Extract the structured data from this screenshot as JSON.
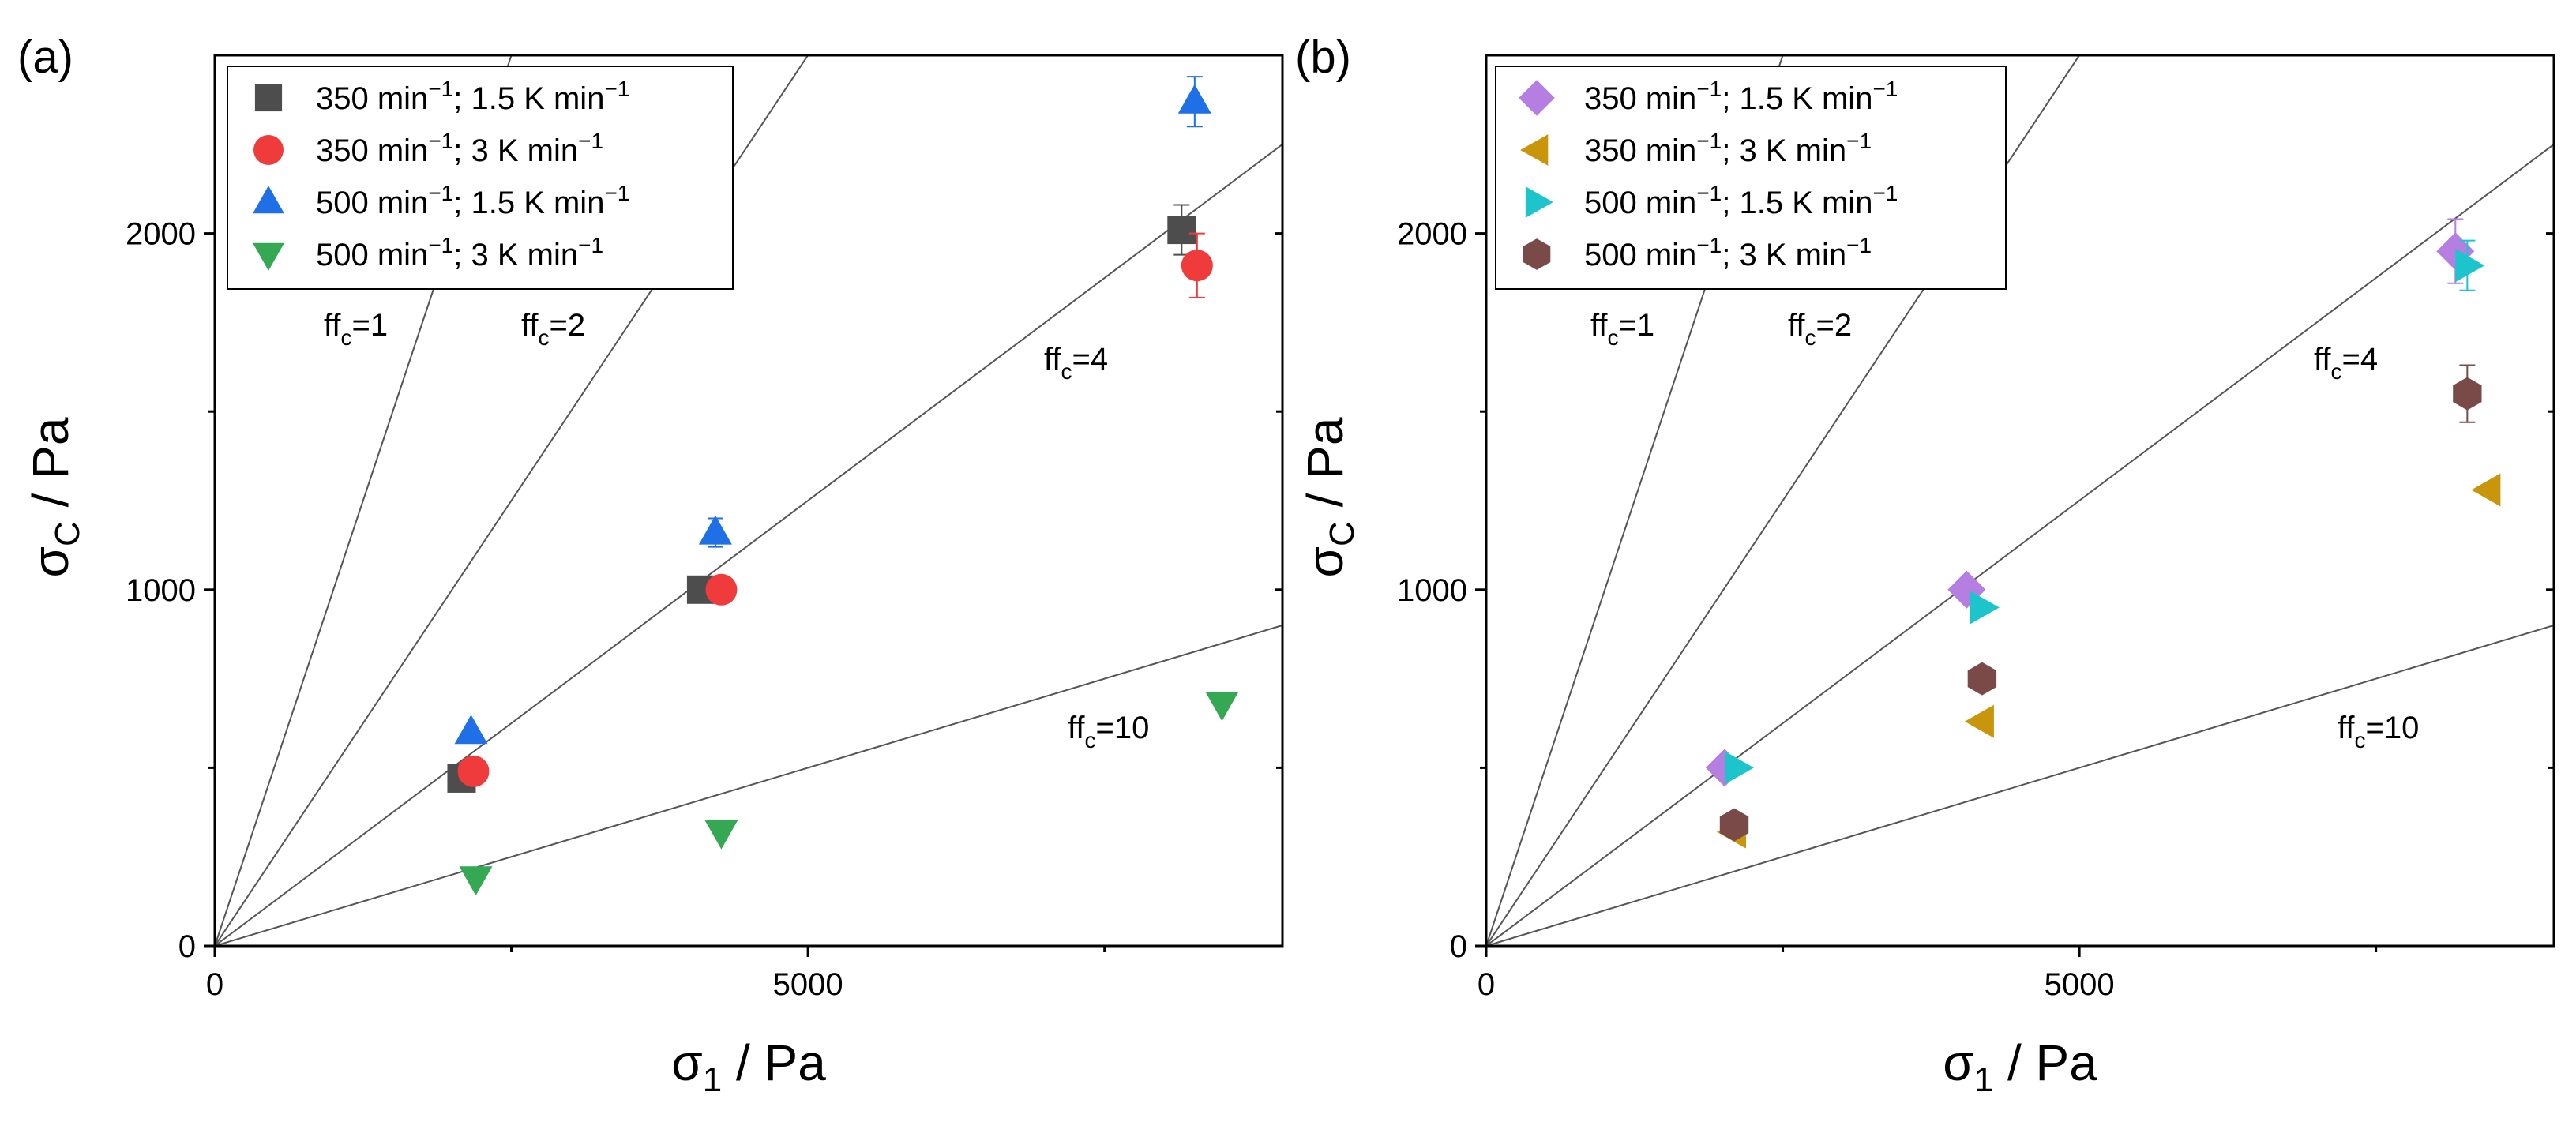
{
  "chart_data": [
    {
      "type": "scatter",
      "panel_label": "(a)",
      "xlabel": {
        "main": "σ",
        "sub": "1",
        "rest": " / Pa"
      },
      "ylabel": {
        "main": "σ",
        "sub": "C",
        "rest": " / Pa"
      },
      "xlim": [
        0,
        9000
      ],
      "ylim": [
        0,
        2500
      ],
      "x_ticks": [
        {
          "value": 0,
          "label": "0"
        },
        {
          "value": 5000,
          "label": "5000"
        }
      ],
      "y_ticks": [
        {
          "value": 0,
          "label": "0"
        },
        {
          "value": 1000,
          "label": "1000"
        },
        {
          "value": 2000,
          "label": "2000"
        }
      ],
      "x_minor_ticks": [
        2500,
        7500
      ],
      "y_minor_ticks": [
        500,
        1500
      ],
      "ff_lines": [
        {
          "ffc": 1,
          "label_main": "ff",
          "label_sub": "c",
          "label_rest": "=1"
        },
        {
          "ffc": 2,
          "label_main": "ff",
          "label_sub": "c",
          "label_rest": "=2"
        },
        {
          "ffc": 4,
          "label_main": "ff",
          "label_sub": "c",
          "label_rest": "=4"
        },
        {
          "ffc": 10,
          "label_main": "ff",
          "label_sub": "c",
          "label_rest": "=10"
        }
      ],
      "series": [
        {
          "name": "350 min−1; 1.5 K min−1",
          "legend": {
            "p1": "350 min",
            "s1": "−1",
            "p2": "; 1.5 K min",
            "s2": "−1"
          },
          "marker": "square",
          "color": "#4d4d4d",
          "points": [
            {
              "x": 2080,
              "y": 470,
              "err": 0
            },
            {
              "x": 4100,
              "y": 1000,
              "err": 0
            },
            {
              "x": 8150,
              "y": 2010,
              "err": 70
            }
          ]
        },
        {
          "name": "350 min−1; 3 K min−1",
          "legend": {
            "p1": "350 min",
            "s1": "−1",
            "p2": "; 3 K min",
            "s2": "−1"
          },
          "marker": "circle",
          "color": "#ef3b3b",
          "points": [
            {
              "x": 2180,
              "y": 490,
              "err": 0
            },
            {
              "x": 4270,
              "y": 1000,
              "err": 0
            },
            {
              "x": 8280,
              "y": 1910,
              "err": 90
            }
          ]
        },
        {
          "name": "500 min−1; 1.5 K min−1",
          "legend": {
            "p1": "500 min",
            "s1": "−1",
            "p2": "; 1.5 K min",
            "s2": "−1"
          },
          "marker": "triangle-up",
          "color": "#1f6fe6",
          "points": [
            {
              "x": 2160,
              "y": 600,
              "err": 0
            },
            {
              "x": 4220,
              "y": 1160,
              "err": 40
            },
            {
              "x": 8260,
              "y": 2370,
              "err": 70
            }
          ]
        },
        {
          "name": "500 min−1; 3 K min−1",
          "legend": {
            "p1": "500 min",
            "s1": "−1",
            "p2": "; 3 K min",
            "s2": "−1"
          },
          "marker": "triangle-down",
          "color": "#34a853",
          "points": [
            {
              "x": 2200,
              "y": 190,
              "err": 0
            },
            {
              "x": 4270,
              "y": 320,
              "err": 0
            },
            {
              "x": 8490,
              "y": 680,
              "err": 0
            }
          ]
        }
      ]
    },
    {
      "type": "scatter",
      "panel_label": "(b)",
      "xlabel": {
        "main": "σ",
        "sub": "1",
        "rest": " / Pa"
      },
      "ylabel": {
        "main": "σ",
        "sub": "C",
        "rest": " / Pa"
      },
      "xlim": [
        0,
        9000
      ],
      "ylim": [
        0,
        2500
      ],
      "x_ticks": [
        {
          "value": 0,
          "label": "0"
        },
        {
          "value": 5000,
          "label": "5000"
        }
      ],
      "y_ticks": [
        {
          "value": 0,
          "label": "0"
        },
        {
          "value": 1000,
          "label": "1000"
        },
        {
          "value": 2000,
          "label": "2000"
        }
      ],
      "x_minor_ticks": [
        2500,
        7500
      ],
      "y_minor_ticks": [
        500,
        1500
      ],
      "ff_lines": [
        {
          "ffc": 1,
          "label_main": "ff",
          "label_sub": "c",
          "label_rest": "=1"
        },
        {
          "ffc": 2,
          "label_main": "ff",
          "label_sub": "c",
          "label_rest": "=2"
        },
        {
          "ffc": 4,
          "label_main": "ff",
          "label_sub": "c",
          "label_rest": "=4"
        },
        {
          "ffc": 10,
          "label_main": "ff",
          "label_sub": "c",
          "label_rest": "=10"
        }
      ],
      "series": [
        {
          "name": "350 min−1; 1.5 K min−1",
          "legend": {
            "p1": "350 min",
            "s1": "−1",
            "p2": "; 1.5 K min",
            "s2": "−1"
          },
          "marker": "diamond",
          "color": "#b57ee0",
          "points": [
            {
              "x": 2010,
              "y": 500,
              "err": 0
            },
            {
              "x": 4050,
              "y": 1000,
              "err": 0
            },
            {
              "x": 8170,
              "y": 1950,
              "err": 90
            }
          ]
        },
        {
          "name": "350 min−1; 3 K min−1",
          "legend": {
            "p1": "350 min",
            "s1": "−1",
            "p2": "; 3 K min",
            "s2": "−1"
          },
          "marker": "triangle-left",
          "color": "#c9950a",
          "points": [
            {
              "x": 2090,
              "y": 320,
              "err": 0
            },
            {
              "x": 4180,
              "y": 630,
              "err": 0
            },
            {
              "x": 8450,
              "y": 1280,
              "err": 0
            }
          ]
        },
        {
          "name": "500 min−1; 1.5 K min−1",
          "legend": {
            "p1": "500 min",
            "s1": "−1",
            "p2": "; 1.5 K min",
            "s2": "−1"
          },
          "marker": "triangle-right",
          "color": "#1cc4cc",
          "points": [
            {
              "x": 2110,
              "y": 500,
              "err": 0
            },
            {
              "x": 4180,
              "y": 950,
              "err": 0
            },
            {
              "x": 8270,
              "y": 1910,
              "err": 70
            }
          ]
        },
        {
          "name": "500 min−1; 3 K min−1",
          "legend": {
            "p1": "500 min",
            "s1": "−1",
            "p2": "; 3 K min",
            "s2": "−1"
          },
          "marker": "hexagon",
          "color": "#7a4a48",
          "points": [
            {
              "x": 2090,
              "y": 340,
              "err": 0
            },
            {
              "x": 4180,
              "y": 750,
              "err": 0
            },
            {
              "x": 8270,
              "y": 1550,
              "err": 80
            }
          ]
        }
      ]
    }
  ]
}
